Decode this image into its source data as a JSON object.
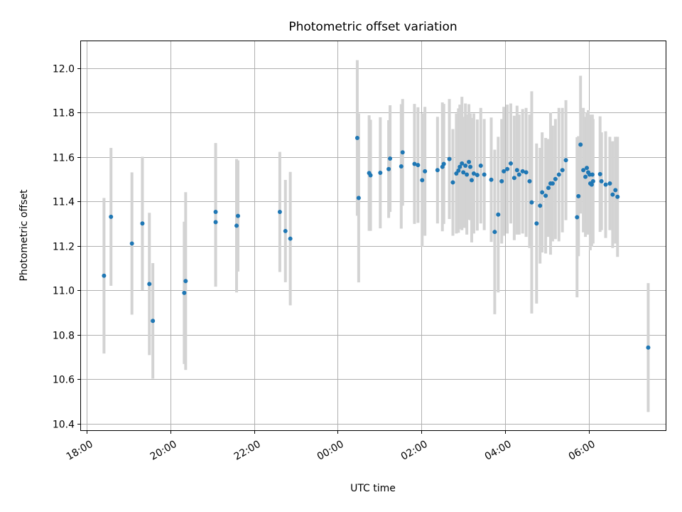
{
  "chart_data": {
    "type": "scatter",
    "title": "Photometric offset variation",
    "xlabel": "UTC time",
    "ylabel": "Photometric offset",
    "x_is_time": true,
    "xlim": [
      "17:52",
      "31:50"
    ],
    "ylim": [
      10.37,
      12.12
    ],
    "x_ticks": [
      {
        "at": "18:00",
        "label": "18:00"
      },
      {
        "at": "20:00",
        "label": "20:00"
      },
      {
        "at": "22:00",
        "label": "22:00"
      },
      {
        "at": "24:00",
        "label": "00:00"
      },
      {
        "at": "26:00",
        "label": "02:00"
      },
      {
        "at": "28:00",
        "label": "04:00"
      },
      {
        "at": "30:00",
        "label": "06:00"
      }
    ],
    "y_ticks": [
      10.4,
      10.6,
      10.8,
      11.0,
      11.2,
      11.4,
      11.6,
      11.8,
      12.0
    ],
    "y_tick_labels": [
      "10.4",
      "10.6",
      "10.8",
      "11.0",
      "11.2",
      "11.4",
      "11.6",
      "11.8",
      "12.0"
    ],
    "grid": true,
    "marker_color": "#1f77b4",
    "errorbar_color": "#d3d3d3",
    "series": [
      {
        "x": [
          "18:25",
          "18:35",
          "19:05",
          "19:20",
          "19:30",
          "19:35",
          "20:20",
          "20:22",
          "21:05",
          "21:05",
          "21:35",
          "21:37",
          "22:37",
          "22:45",
          "22:52",
          "24:28",
          "24:30",
          "24:45",
          "24:47",
          "25:01",
          "25:13",
          "25:15",
          "25:31",
          "25:33",
          "25:50",
          "25:55",
          "26:01",
          "26:05",
          "26:23",
          "26:30",
          "26:32",
          "26:40",
          "26:45",
          "26:50",
          "26:53",
          "26:55",
          "26:58",
          "27:00",
          "27:03",
          "27:05",
          "27:08",
          "27:10",
          "27:12",
          "27:15",
          "27:20",
          "27:25",
          "27:30",
          "27:40",
          "27:45",
          "27:50",
          "27:55",
          "27:58",
          "28:03",
          "28:08",
          "28:13",
          "28:17",
          "28:20",
          "28:25",
          "28:30",
          "28:35",
          "28:38",
          "28:45",
          "28:50",
          "28:53",
          "28:58",
          "29:02",
          "29:05",
          "29:08",
          "29:12",
          "29:17",
          "29:22",
          "29:27",
          "29:43",
          "29:45",
          "29:48",
          "29:52",
          "29:55",
          "29:57",
          "29:59",
          "30:01",
          "30:02",
          "30:04",
          "30:05",
          "30:06",
          "30:16",
          "30:18",
          "30:24",
          "30:30",
          "30:34",
          "30:38",
          "30:41",
          "31:25"
        ],
        "y": [
          11.065,
          11.33,
          11.21,
          11.3,
          11.028,
          10.862,
          10.988,
          11.041,
          11.352,
          11.306,
          11.29,
          11.334,
          11.352,
          11.266,
          11.232,
          11.685,
          11.415,
          11.527,
          11.517,
          11.528,
          11.545,
          11.592,
          11.557,
          11.62,
          11.568,
          11.563,
          11.495,
          11.535,
          11.54,
          11.555,
          11.568,
          11.59,
          11.485,
          11.525,
          11.538,
          11.555,
          11.57,
          11.53,
          11.56,
          11.52,
          11.577,
          11.555,
          11.495,
          11.525,
          11.518,
          11.56,
          11.52,
          11.497,
          11.262,
          11.34,
          11.49,
          11.535,
          11.545,
          11.57,
          11.505,
          11.54,
          11.52,
          11.535,
          11.53,
          11.49,
          11.395,
          11.3,
          11.38,
          11.44,
          11.425,
          11.46,
          11.48,
          11.48,
          11.5,
          11.52,
          11.54,
          11.585,
          11.328,
          11.423,
          11.655,
          11.54,
          11.51,
          11.55,
          11.53,
          11.52,
          11.48,
          11.475,
          11.52,
          11.49,
          11.522,
          11.49,
          11.475,
          11.48,
          11.43,
          11.45,
          11.42,
          10.742
        ],
        "yerr": [
          0.35,
          0.31,
          0.32,
          0.3,
          0.32,
          0.26,
          0.32,
          0.4,
          0.31,
          0.29,
          0.3,
          0.25,
          0.27,
          0.23,
          0.3,
          0.35,
          0.38,
          0.26,
          0.25,
          0.25,
          0.22,
          0.24,
          0.28,
          0.24,
          0.27,
          0.26,
          0.3,
          0.29,
          0.24,
          0.29,
          0.27,
          0.27,
          0.24,
          0.27,
          0.28,
          0.28,
          0.3,
          0.25,
          0.28,
          0.27,
          0.26,
          0.24,
          0.28,
          0.27,
          0.25,
          0.26,
          0.25,
          0.28,
          0.37,
          0.35,
          0.28,
          0.29,
          0.29,
          0.27,
          0.28,
          0.29,
          0.27,
          0.28,
          0.29,
          0.3,
          0.5,
          0.36,
          0.26,
          0.27,
          0.26,
          0.22,
          0.32,
          0.26,
          0.27,
          0.3,
          0.28,
          0.27,
          0.36,
          0.27,
          0.31,
          0.28,
          0.27,
          0.25,
          0.28,
          0.27,
          0.3,
          0.28,
          0.27,
          0.28,
          0.26,
          0.22,
          0.24,
          0.21,
          0.24,
          0.24,
          0.27,
          0.29
        ]
      }
    ]
  }
}
